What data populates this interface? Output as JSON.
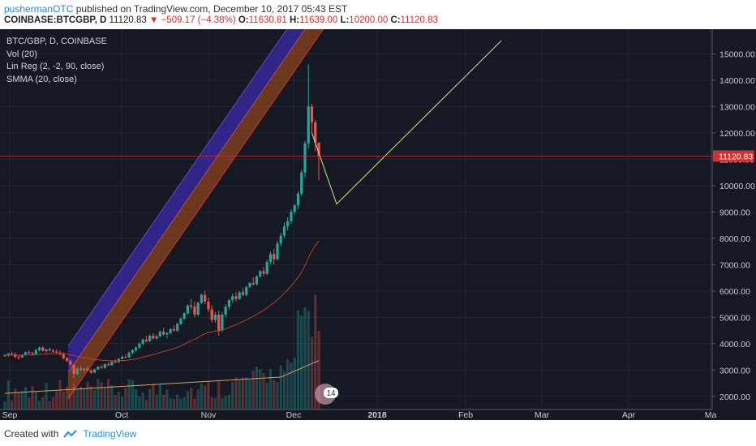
{
  "header": {
    "author": "pushermanOTC",
    "published_text": "published on TradingView.com, December 10, 2017 05:43 EST",
    "symbol": "COINBASE:BTCGBP, D",
    "last": "11120.83",
    "change": "−509.17 (−4.38%)",
    "o_label": "O:",
    "o": "11630.81",
    "h_label": "H:",
    "h": "11639.00",
    "l_label": "L:",
    "l": "10200.00",
    "c_label": "C:",
    "c": "11120.83"
  },
  "legend": {
    "line1": "BTC/GBP, D, COINBASE",
    "line2": "Vol (20)",
    "line3": "Lin Reg (2, -2, 90, close)",
    "line4": "SMMA (20, close)"
  },
  "footer": {
    "created": "Created with",
    "brand": "TradingView"
  },
  "colors": {
    "background": "#151924",
    "up": "#26a69a",
    "down": "#ef5350",
    "upper_channel": "#3a2aa8",
    "lower_channel": "#b4501c",
    "price_line": "#d32f2f"
  },
  "chart_data": {
    "type": "candlestick",
    "y_ticks": [
      "15000.00",
      "14000.00",
      "13000.00",
      "12000.00",
      "11000.00",
      "10000.00",
      "9000.00",
      "8000.00",
      "7000.00",
      "6000.00",
      "5000.00",
      "4000.00",
      "3000.00",
      "2000.00"
    ],
    "ylim": [
      1500,
      15500
    ],
    "x_ticks": [
      "Sep",
      "Oct",
      "Nov",
      "Dec",
      "2018",
      "Feb",
      "Mar",
      "Apr",
      "Ma"
    ],
    "last_price_label": "11120.83",
    "event_badge": "14",
    "candles": [
      [
        3550,
        3600,
        3500,
        3560
      ],
      [
        3560,
        3650,
        3500,
        3620
      ],
      [
        3620,
        3700,
        3580,
        3600
      ],
      [
        3600,
        3650,
        3450,
        3500
      ],
      [
        3500,
        3550,
        3400,
        3480
      ],
      [
        3480,
        3600,
        3450,
        3580
      ],
      [
        3580,
        3700,
        3550,
        3680
      ],
      [
        3680,
        3750,
        3600,
        3640
      ],
      [
        3640,
        3700,
        3550,
        3600
      ],
      [
        3600,
        3800,
        3580,
        3760
      ],
      [
        3760,
        3900,
        3700,
        3850
      ],
      [
        3850,
        3900,
        3700,
        3720
      ],
      [
        3720,
        3800,
        3650,
        3780
      ],
      [
        3780,
        3850,
        3700,
        3740
      ],
      [
        3740,
        3800,
        3650,
        3700
      ],
      [
        3700,
        3780,
        3600,
        3660
      ],
      [
        3660,
        3750,
        3550,
        3620
      ],
      [
        3620,
        3680,
        3400,
        3450
      ],
      [
        3450,
        3500,
        3300,
        3350
      ],
      [
        3350,
        3400,
        3100,
        3200
      ],
      [
        3200,
        3250,
        2700,
        2850
      ],
      [
        2850,
        3100,
        2800,
        3050
      ],
      [
        3050,
        3150,
        2950,
        3000
      ],
      [
        3000,
        3100,
        2900,
        3050
      ],
      [
        3050,
        3150,
        2950,
        2980
      ],
      [
        2980,
        3050,
        2850,
        2900
      ],
      [
        2900,
        3050,
        2880,
        3020
      ],
      [
        3020,
        3150,
        3000,
        3120
      ],
      [
        3120,
        3200,
        3050,
        3080
      ],
      [
        3080,
        3250,
        3050,
        3220
      ],
      [
        3220,
        3300,
        3150,
        3180
      ],
      [
        3180,
        3350,
        3150,
        3320
      ],
      [
        3320,
        3400,
        3250,
        3300
      ],
      [
        3300,
        3450,
        3280,
        3420
      ],
      [
        3420,
        3550,
        3400,
        3500
      ],
      [
        3500,
        3600,
        3450,
        3480
      ],
      [
        3480,
        3700,
        3450,
        3650
      ],
      [
        3650,
        3800,
        3600,
        3750
      ],
      [
        3750,
        3900,
        3700,
        3850
      ],
      [
        3850,
        4050,
        3800,
        4000
      ],
      [
        4000,
        4200,
        3950,
        4150
      ],
      [
        4150,
        4300,
        4050,
        4100
      ],
      [
        4100,
        4350,
        4050,
        4300
      ],
      [
        4300,
        4400,
        4150,
        4200
      ],
      [
        4200,
        4350,
        4150,
        4280
      ],
      [
        4280,
        4500,
        4250,
        4450
      ],
      [
        4450,
        4600,
        4300,
        4350
      ],
      [
        4350,
        4450,
        4200,
        4400
      ],
      [
        4400,
        4600,
        4350,
        4550
      ],
      [
        4550,
        4700,
        4450,
        4500
      ],
      [
        4500,
        4800,
        4450,
        4750
      ],
      [
        4750,
        5000,
        4700,
        4950
      ],
      [
        4950,
        5200,
        4900,
        5150
      ],
      [
        5150,
        5500,
        5100,
        5450
      ],
      [
        5450,
        5700,
        5300,
        5400
      ],
      [
        5400,
        5600,
        5000,
        5100
      ],
      [
        5100,
        5600,
        5050,
        5550
      ],
      [
        5550,
        5900,
        5500,
        5850
      ],
      [
        5850,
        6000,
        5500,
        5600
      ],
      [
        5600,
        5750,
        5200,
        5300
      ],
      [
        5300,
        5450,
        4800,
        4900
      ],
      [
        4900,
        5200,
        4800,
        5100
      ],
      [
        5100,
        5250,
        4300,
        4500
      ],
      [
        4500,
        5200,
        4450,
        5100
      ],
      [
        5100,
        5500,
        5000,
        5400
      ],
      [
        5400,
        5700,
        5300,
        5650
      ],
      [
        5650,
        5900,
        5550,
        5800
      ],
      [
        5800,
        5950,
        5600,
        5700
      ],
      [
        5700,
        6000,
        5650,
        5950
      ],
      [
        5950,
        6100,
        5800,
        5850
      ],
      [
        5850,
        6200,
        5800,
        6150
      ],
      [
        6150,
        6350,
        6100,
        6300
      ],
      [
        6300,
        6500,
        6200,
        6250
      ],
      [
        6250,
        6600,
        6200,
        6550
      ],
      [
        6550,
        6800,
        6500,
        6750
      ],
      [
        6750,
        6900,
        6550,
        6650
      ],
      [
        6650,
        7200,
        6600,
        7100
      ],
      [
        7100,
        7500,
        7000,
        7400
      ],
      [
        7400,
        7600,
        7000,
        7200
      ],
      [
        7200,
        7900,
        7150,
        7800
      ],
      [
        7800,
        8200,
        7700,
        8100
      ],
      [
        8100,
        8600,
        8000,
        8450
      ],
      [
        8450,
        8800,
        8300,
        8650
      ],
      [
        8650,
        9100,
        8550,
        9000
      ],
      [
        9000,
        9300,
        8900,
        9250
      ],
      [
        9250,
        9800,
        9100,
        9700
      ],
      [
        9700,
        10600,
        9600,
        10500
      ],
      [
        10500,
        11700,
        10300,
        11600
      ],
      [
        11600,
        14600,
        11400,
        13000
      ],
      [
        13000,
        13100,
        12000,
        12400
      ],
      [
        12400,
        12500,
        11300,
        11630
      ],
      [
        11630,
        11639,
        10200,
        11120
      ]
    ]
  }
}
